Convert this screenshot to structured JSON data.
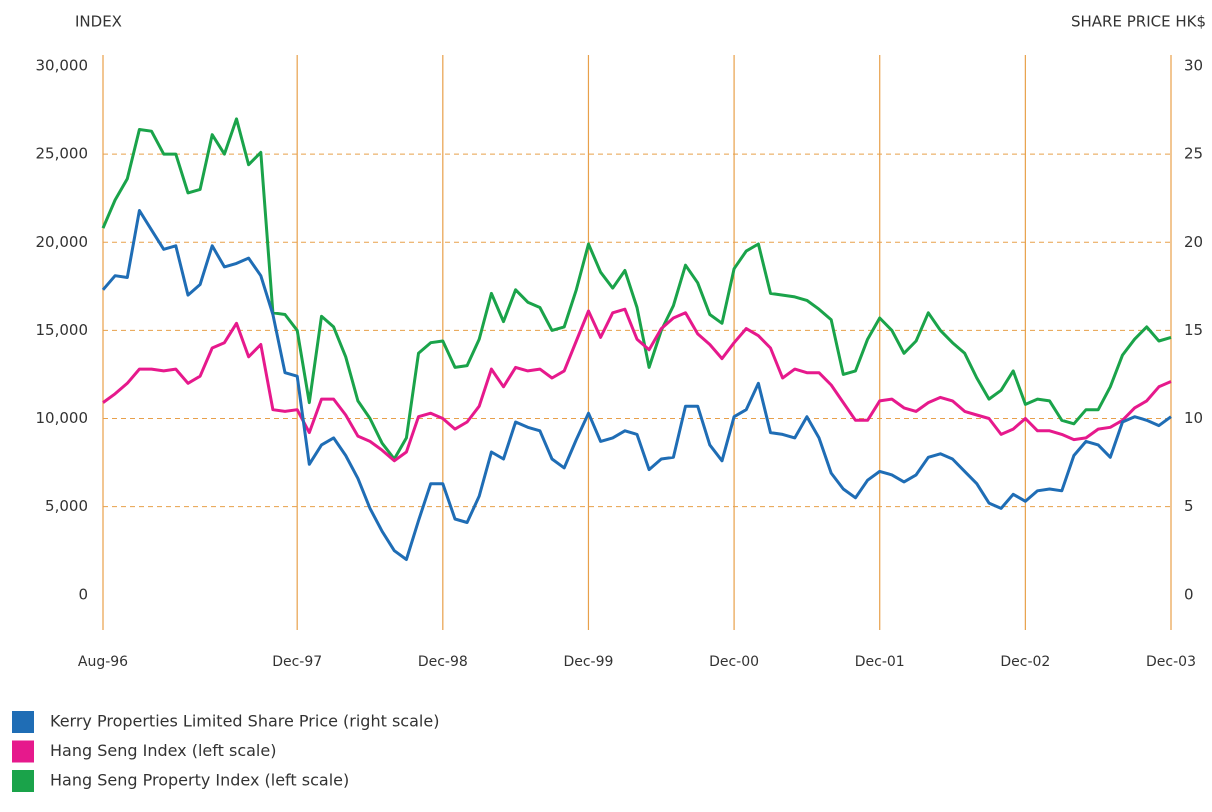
{
  "chart_data": {
    "type": "line",
    "y_axis_label": "INDEX",
    "y2_axis_label": "SHARE PRICE HK$",
    "categories": [
      "Aug-96",
      null,
      null,
      null,
      null,
      null,
      null,
      null,
      null,
      null,
      null,
      null,
      null,
      null,
      null,
      null,
      "Dec-97",
      null,
      null,
      null,
      null,
      null,
      null,
      null,
      null,
      null,
      null,
      null,
      "Dec-98",
      null,
      null,
      null,
      null,
      null,
      null,
      null,
      null,
      null,
      null,
      null,
      "Dec-99",
      null,
      null,
      null,
      null,
      null,
      null,
      null,
      null,
      null,
      null,
      null,
      "Dec-00",
      null,
      null,
      null,
      null,
      null,
      null,
      null,
      null,
      null,
      null,
      null,
      "Dec-01",
      null,
      null,
      null,
      null,
      null,
      null,
      null,
      null,
      null,
      null,
      null,
      "Dec-02",
      null,
      null,
      null,
      null,
      null,
      null,
      null,
      null,
      null,
      null,
      null,
      "Dec-03"
    ],
    "series": [
      {
        "name": "Kerry Properties Limited Share Price (right scale)",
        "color": "#1f6db5",
        "axis": "y2",
        "values": [
          17.3,
          18.1,
          18.0,
          21.8,
          20.7,
          19.6,
          19.8,
          17.0,
          17.6,
          19.8,
          18.6,
          18.8,
          19.1,
          18.1,
          15.9,
          12.6,
          12.4,
          7.4,
          8.5,
          8.9,
          7.9,
          6.6,
          4.9,
          3.6,
          2.5,
          2.0,
          4.2,
          6.3,
          6.3,
          4.3,
          4.1,
          5.6,
          8.1,
          7.7,
          9.8,
          9.5,
          9.3,
          7.7,
          7.2,
          8.8,
          10.3,
          8.7,
          8.9,
          9.3,
          9.1,
          7.1,
          7.7,
          7.8,
          10.7,
          10.7,
          8.5,
          7.6,
          10.1,
          10.5,
          12.0,
          9.2,
          9.1,
          8.9,
          10.1,
          8.9,
          6.9,
          6.0,
          5.5,
          6.5,
          7.0,
          6.8,
          6.4,
          6.8,
          7.8,
          8.0,
          7.7,
          7.0,
          6.3,
          5.2,
          4.9,
          5.7,
          5.3,
          5.9,
          6.0,
          5.9,
          7.9,
          8.7,
          8.5,
          7.8,
          9.8,
          10.1,
          9.9,
          9.6,
          10.1
        ]
      },
      {
        "name": "Hang Seng Index (left scale)",
        "color": "#e6198c",
        "values": [
          10900,
          11400,
          12000,
          12800,
          12800,
          12700,
          12800,
          12000,
          12400,
          14000,
          14300,
          15400,
          13500,
          14200,
          10500,
          10400,
          10500,
          9200,
          11100,
          11100,
          10200,
          9000,
          8700,
          8200,
          7600,
          8100,
          10100,
          10300,
          10000,
          9400,
          9800,
          10700,
          12800,
          11800,
          12900,
          12700,
          12800,
          12300,
          12700,
          14400,
          16100,
          14600,
          16000,
          16200,
          14500,
          13900,
          15100,
          15700,
          16000,
          14800,
          14200,
          13400,
          14300,
          15100,
          14700,
          14000,
          12300,
          12800,
          12600,
          12600,
          11900,
          10900,
          9900,
          9900,
          11000,
          11100,
          10600,
          10400,
          10900,
          11200,
          11000,
          10400,
          10200,
          10000,
          9100,
          9400,
          10000,
          9300,
          9300,
          9100,
          8800,
          8900,
          9400,
          9500,
          9900,
          10600,
          11000,
          11800,
          12100
        ]
      },
      {
        "name": "Hang Seng Property Index (left scale)",
        "color": "#1aa34a",
        "values": [
          20800,
          22400,
          23600,
          26400,
          26300,
          25000,
          25000,
          22800,
          23000,
          26100,
          25000,
          27000,
          24400,
          25100,
          16000,
          15900,
          15000,
          10900,
          15800,
          15200,
          13500,
          11000,
          10000,
          8600,
          7700,
          8900,
          13700,
          14300,
          14400,
          12900,
          13000,
          14500,
          17100,
          15500,
          17300,
          16600,
          16300,
          15000,
          15200,
          17300,
          19900,
          18300,
          17400,
          18400,
          16300,
          12900,
          15000,
          16400,
          18700,
          17700,
          15900,
          15400,
          18500,
          19500,
          19900,
          17100,
          17000,
          16900,
          16700,
          16200,
          15600,
          12500,
          12700,
          14500,
          15700,
          15000,
          13700,
          14400,
          16000,
          15000,
          14300,
          13700,
          12300,
          11100,
          11600,
          12700,
          10800,
          11100,
          11000,
          9900,
          9700,
          10500,
          10500,
          11800,
          13600,
          14500,
          15200,
          14400,
          14600
        ]
      }
    ],
    "ylim": [
      -2000,
      30000
    ],
    "yticks": [
      0,
      {
        "value": 5000,
        "label": "5,000"
      },
      {
        "value": 10000,
        "label": "10,000"
      },
      {
        "value": 15000,
        "label": "15,000"
      },
      {
        "value": 20000,
        "label": "20,000"
      },
      {
        "value": 25000,
        "label": "25,000"
      },
      {
        "value": 30000,
        "label": "30,000"
      }
    ],
    "y2lim": [
      -2,
      30
    ],
    "y2ticks": [
      0,
      5,
      10,
      15,
      20,
      25,
      30
    ],
    "grid": true,
    "axis_color": "#e8a04a"
  }
}
